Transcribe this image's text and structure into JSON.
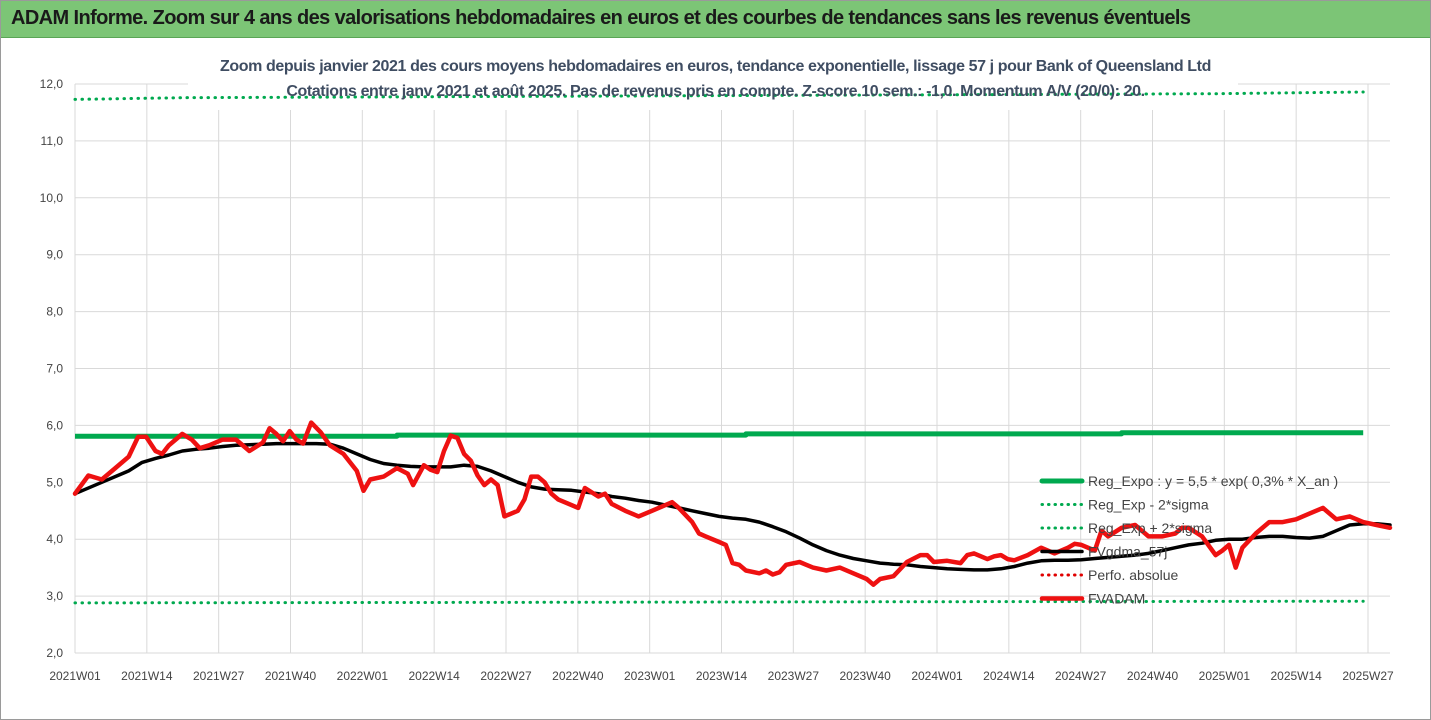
{
  "banner": {
    "title": "ADAM Informe. Zoom sur 4 ans des valorisations hebdomadaires en euros et des courbes de tendances sans les revenus éventuels"
  },
  "chart_data": {
    "type": "line",
    "title": "Zoom depuis janvier 2021 des cours moyens hebdomadaires en euros, tendance exponentielle, lissage 57 j pour Bank of Queensland Ltd",
    "subtitle": "Cotations entre janv 2021 et août 2025. Pas de revenus pris en compte. Z-score 10 sem.: -1,0. Momentum A/V (20/0): 20.",
    "xlabel": "",
    "ylabel": "",
    "ylim": [
      2.0,
      12.0
    ],
    "y_ticks": [
      "12,0",
      "11,0",
      "10,0",
      "9,0",
      "8,0",
      "7,0",
      "6,0",
      "5,0",
      "4,0",
      "3,0",
      "2,0"
    ],
    "x_ticks": [
      "2021W01",
      "2021W14",
      "2021W27",
      "2021W40",
      "2022W01",
      "2022W14",
      "2022W27",
      "2022W40",
      "2023W01",
      "2023W14",
      "2023W27",
      "2023W40",
      "2024W01",
      "2024W14",
      "2024W27",
      "2024W40",
      "2025W01",
      "2025W14",
      "2025W27"
    ],
    "grid": true,
    "legend_position": "right",
    "series": [
      {
        "name": "Reg_Expo : y = 5,5 * exp( 0,3% *  X_an )",
        "color": "#00a94f",
        "style": "solid",
        "points": [
          [
            0,
            5.81
          ],
          [
            24,
            5.81
          ],
          [
            24,
            5.83
          ],
          [
            50,
            5.83
          ],
          [
            50,
            5.85
          ],
          [
            78,
            5.85
          ],
          [
            78,
            5.87
          ],
          [
            96,
            5.87
          ]
        ]
      },
      {
        "name": "Reg_Exp - 2*sigma",
        "color": "#00a94f",
        "style": "dotted",
        "points": [
          [
            0,
            2.88
          ],
          [
            30,
            2.89
          ],
          [
            60,
            2.9
          ],
          [
            96,
            2.91
          ]
        ]
      },
      {
        "name": "Reg_Exp + 2*sigma",
        "color": "#00a94f",
        "style": "dotted",
        "points": [
          [
            0,
            11.73
          ],
          [
            8,
            11.76
          ],
          [
            85,
            11.83
          ],
          [
            96,
            11.86
          ]
        ]
      },
      {
        "name": "FVgdma_57j",
        "color": "#000000",
        "style": "solid",
        "points": [
          [
            0,
            4.8
          ],
          [
            2,
            5.0
          ],
          [
            4,
            5.2
          ],
          [
            5,
            5.35
          ],
          [
            6,
            5.42
          ],
          [
            7,
            5.48
          ],
          [
            8,
            5.55
          ],
          [
            9,
            5.58
          ],
          [
            10,
            5.6
          ],
          [
            11,
            5.63
          ],
          [
            12,
            5.65
          ],
          [
            13,
            5.66
          ],
          [
            14,
            5.67
          ],
          [
            15,
            5.68
          ],
          [
            16,
            5.68
          ],
          [
            17,
            5.68
          ],
          [
            18,
            5.68
          ],
          [
            19,
            5.67
          ],
          [
            20,
            5.6
          ],
          [
            21,
            5.5
          ],
          [
            22,
            5.4
          ],
          [
            23,
            5.33
          ],
          [
            24,
            5.3
          ],
          [
            25,
            5.28
          ],
          [
            26,
            5.27
          ],
          [
            27,
            5.27
          ],
          [
            28,
            5.27
          ],
          [
            29,
            5.3
          ],
          [
            30,
            5.28
          ],
          [
            31,
            5.2
          ],
          [
            32,
            5.1
          ],
          [
            33,
            5.0
          ],
          [
            34,
            4.92
          ],
          [
            35,
            4.88
          ],
          [
            36,
            4.87
          ],
          [
            37,
            4.86
          ],
          [
            38,
            4.83
          ],
          [
            39,
            4.8
          ],
          [
            40,
            4.75
          ],
          [
            41,
            4.72
          ],
          [
            42,
            4.68
          ],
          [
            43,
            4.65
          ],
          [
            44,
            4.6
          ],
          [
            45,
            4.55
          ],
          [
            46,
            4.5
          ],
          [
            47,
            4.45
          ],
          [
            48,
            4.4
          ],
          [
            49,
            4.37
          ],
          [
            50,
            4.35
          ],
          [
            51,
            4.3
          ],
          [
            52,
            4.22
          ],
          [
            53,
            4.13
          ],
          [
            54,
            4.02
          ],
          [
            55,
            3.9
          ],
          [
            56,
            3.8
          ],
          [
            57,
            3.72
          ],
          [
            58,
            3.66
          ],
          [
            59,
            3.62
          ],
          [
            60,
            3.58
          ],
          [
            61,
            3.56
          ],
          [
            62,
            3.55
          ],
          [
            63,
            3.52
          ],
          [
            64,
            3.5
          ],
          [
            65,
            3.48
          ],
          [
            66,
            3.47
          ],
          [
            67,
            3.46
          ],
          [
            68,
            3.46
          ],
          [
            69,
            3.48
          ],
          [
            70,
            3.52
          ],
          [
            71,
            3.58
          ],
          [
            72,
            3.62
          ],
          [
            73,
            3.63
          ],
          [
            74,
            3.63
          ],
          [
            75,
            3.64
          ],
          [
            76,
            3.66
          ],
          [
            77,
            3.68
          ],
          [
            78,
            3.7
          ],
          [
            79,
            3.72
          ],
          [
            80,
            3.75
          ],
          [
            81,
            3.8
          ],
          [
            82,
            3.85
          ],
          [
            83,
            3.9
          ],
          [
            84,
            3.93
          ],
          [
            85,
            3.98
          ],
          [
            86,
            4.0
          ],
          [
            87,
            4.0
          ],
          [
            88,
            4.03
          ],
          [
            89,
            4.05
          ],
          [
            90,
            4.05
          ],
          [
            91,
            4.03
          ],
          [
            92,
            4.02
          ],
          [
            93,
            4.05
          ],
          [
            94,
            4.15
          ],
          [
            95,
            4.25
          ],
          [
            96,
            4.27
          ],
          [
            97,
            4.27
          ],
          [
            98,
            4.25
          ]
        ]
      },
      {
        "name": "Perfo. absolue",
        "color": "#e00000",
        "style": "dotted",
        "points": []
      },
      {
        "name": "FVADAM",
        "color": "#ee1111",
        "style": "solid",
        "points": [
          [
            0,
            4.8
          ],
          [
            1,
            5.12
          ],
          [
            2,
            5.05
          ],
          [
            3,
            5.25
          ],
          [
            4,
            5.45
          ],
          [
            4.7,
            5.8
          ],
          [
            5.3,
            5.8
          ],
          [
            6,
            5.55
          ],
          [
            6.5,
            5.5
          ],
          [
            7,
            5.65
          ],
          [
            7.5,
            5.75
          ],
          [
            8,
            5.85
          ],
          [
            8.7,
            5.75
          ],
          [
            9.3,
            5.6
          ],
          [
            10,
            5.65
          ],
          [
            11,
            5.75
          ],
          [
            12,
            5.75
          ],
          [
            13,
            5.55
          ],
          [
            14,
            5.7
          ],
          [
            14.5,
            5.95
          ],
          [
            15,
            5.85
          ],
          [
            15.5,
            5.72
          ],
          [
            16,
            5.9
          ],
          [
            16.5,
            5.75
          ],
          [
            17,
            5.68
          ],
          [
            17.6,
            6.05
          ],
          [
            18.3,
            5.88
          ],
          [
            19,
            5.65
          ],
          [
            20,
            5.5
          ],
          [
            21,
            5.2
          ],
          [
            21.5,
            4.85
          ],
          [
            22,
            5.05
          ],
          [
            23,
            5.1
          ],
          [
            24,
            5.25
          ],
          [
            24.8,
            5.15
          ],
          [
            25.2,
            4.95
          ],
          [
            26,
            5.3
          ],
          [
            26.5,
            5.22
          ],
          [
            27,
            5.18
          ],
          [
            27.5,
            5.55
          ],
          [
            28,
            5.82
          ],
          [
            28.5,
            5.78
          ],
          [
            29,
            5.5
          ],
          [
            29.5,
            5.38
          ],
          [
            30,
            5.12
          ],
          [
            30.5,
            4.95
          ],
          [
            31,
            5.05
          ],
          [
            31.5,
            4.95
          ],
          [
            32,
            4.4
          ],
          [
            33,
            4.5
          ],
          [
            33.5,
            4.7
          ],
          [
            34,
            5.1
          ],
          [
            34.5,
            5.1
          ],
          [
            35,
            5.0
          ],
          [
            35.5,
            4.8
          ],
          [
            36,
            4.7
          ],
          [
            37,
            4.6
          ],
          [
            37.5,
            4.55
          ],
          [
            38,
            4.9
          ],
          [
            39,
            4.75
          ],
          [
            39.5,
            4.8
          ],
          [
            40,
            4.62
          ],
          [
            41,
            4.5
          ],
          [
            42,
            4.4
          ],
          [
            43,
            4.5
          ],
          [
            43.5,
            4.55
          ],
          [
            44,
            4.6
          ],
          [
            44.5,
            4.65
          ],
          [
            45,
            4.55
          ],
          [
            46,
            4.3
          ],
          [
            46.5,
            4.1
          ],
          [
            47,
            4.05
          ],
          [
            48,
            3.95
          ],
          [
            48.5,
            3.9
          ],
          [
            49,
            3.58
          ],
          [
            49.5,
            3.55
          ],
          [
            50,
            3.45
          ],
          [
            51,
            3.4
          ],
          [
            51.5,
            3.45
          ],
          [
            52,
            3.38
          ],
          [
            52.5,
            3.42
          ],
          [
            53,
            3.55
          ],
          [
            54,
            3.6
          ],
          [
            54.5,
            3.55
          ],
          [
            55,
            3.5
          ],
          [
            56,
            3.45
          ],
          [
            57,
            3.5
          ],
          [
            58,
            3.4
          ],
          [
            59,
            3.3
          ],
          [
            59.5,
            3.2
          ],
          [
            60,
            3.3
          ],
          [
            61,
            3.35
          ],
          [
            62,
            3.6
          ],
          [
            63,
            3.72
          ],
          [
            63.5,
            3.72
          ],
          [
            64,
            3.6
          ],
          [
            65,
            3.62
          ],
          [
            66,
            3.58
          ],
          [
            66.5,
            3.72
          ],
          [
            67,
            3.75
          ],
          [
            68,
            3.65
          ],
          [
            68.5,
            3.7
          ],
          [
            69,
            3.72
          ],
          [
            69.5,
            3.65
          ],
          [
            70,
            3.63
          ],
          [
            71,
            3.72
          ],
          [
            72,
            3.85
          ],
          [
            73,
            3.75
          ],
          [
            74,
            3.85
          ],
          [
            74.5,
            3.92
          ],
          [
            75,
            3.9
          ],
          [
            76,
            3.8
          ],
          [
            76.5,
            4.15
          ],
          [
            77,
            4.05
          ],
          [
            78,
            4.2
          ],
          [
            79,
            4.25
          ],
          [
            80,
            4.05
          ],
          [
            81,
            4.05
          ],
          [
            82,
            4.1
          ],
          [
            82.5,
            4.2
          ],
          [
            83,
            4.2
          ],
          [
            84,
            4.05
          ],
          [
            85,
            3.72
          ],
          [
            85.5,
            3.8
          ],
          [
            86,
            3.9
          ],
          [
            86.5,
            3.5
          ],
          [
            87,
            3.85
          ],
          [
            88,
            4.1
          ],
          [
            89,
            4.3
          ],
          [
            90,
            4.3
          ],
          [
            91,
            4.35
          ],
          [
            92,
            4.45
          ],
          [
            93,
            4.55
          ],
          [
            94,
            4.35
          ],
          [
            95,
            4.4
          ],
          [
            96,
            4.3
          ],
          [
            97,
            4.25
          ],
          [
            98,
            4.2
          ]
        ]
      }
    ]
  }
}
